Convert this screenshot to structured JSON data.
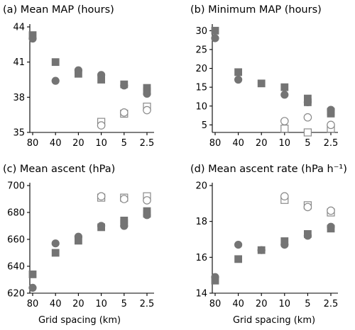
{
  "chart_data": [
    {
      "type": "scatter",
      "title": "(a) Mean MAP (hours)",
      "xlabel": "",
      "categories": [
        "80",
        "40",
        "20",
        "10",
        "5",
        "2.5"
      ],
      "ylim": [
        35,
        44
      ],
      "yticks": [
        35,
        38,
        41,
        44
      ],
      "series": [
        {
          "marker": "square",
          "fill": "filled",
          "values": [
            [
              0,
              43.3
            ],
            [
              1,
              41.0
            ],
            [
              2,
              40.0
            ],
            [
              3,
              39.5
            ],
            [
              4,
              39.1
            ],
            [
              5,
              38.8
            ],
            [
              5,
              38.5
            ]
          ]
        },
        {
          "marker": "circle",
          "fill": "filled",
          "values": [
            [
              0,
              43.0
            ],
            [
              1,
              39.4
            ],
            [
              2,
              40.3
            ],
            [
              3,
              39.9
            ],
            [
              4,
              39.0
            ],
            [
              5,
              38.3
            ]
          ]
        },
        {
          "marker": "square",
          "fill": "open",
          "values": [
            [
              3,
              35.9
            ],
            [
              4,
              36.6
            ],
            [
              5,
              37.2
            ]
          ]
        },
        {
          "marker": "circle",
          "fill": "open",
          "values": [
            [
              3,
              35.6
            ],
            [
              4,
              36.7
            ],
            [
              5,
              36.9
            ]
          ]
        }
      ]
    },
    {
      "type": "scatter",
      "title": "(b) Minimum MAP (hours)",
      "xlabel": "",
      "categories": [
        "80",
        "40",
        "20",
        "10",
        "5",
        "2.5"
      ],
      "ylim": [
        3,
        31
      ],
      "yticks": [
        5,
        10,
        15,
        20,
        25,
        30
      ],
      "series": [
        {
          "marker": "square",
          "fill": "filled",
          "values": [
            [
              0,
              30
            ],
            [
              1,
              19
            ],
            [
              2,
              16
            ],
            [
              3,
              15
            ],
            [
              4,
              12
            ],
            [
              4,
              11
            ],
            [
              5,
              8.5
            ],
            [
              5,
              8
            ]
          ]
        },
        {
          "marker": "circle",
          "fill": "filled",
          "values": [
            [
              0,
              28
            ],
            [
              1,
              17
            ],
            [
              3,
              13
            ],
            [
              4,
              11
            ],
            [
              5,
              9
            ]
          ]
        },
        {
          "marker": "square",
          "fill": "open",
          "values": [
            [
              3,
              4
            ],
            [
              4,
              3
            ],
            [
              5,
              4
            ]
          ]
        },
        {
          "marker": "circle",
          "fill": "open",
          "values": [
            [
              3,
              6
            ],
            [
              4,
              7
            ],
            [
              5,
              5
            ]
          ]
        }
      ]
    },
    {
      "type": "scatter",
      "title": "(c) Mean ascent (hPa)",
      "xlabel": "Grid spacing (km)",
      "categories": [
        "80",
        "40",
        "20",
        "10",
        "5",
        "2.5"
      ],
      "ylim": [
        620,
        700
      ],
      "yticks": [
        620,
        640,
        660,
        680,
        700
      ],
      "series": [
        {
          "marker": "square",
          "fill": "filled",
          "values": [
            [
              0,
              634
            ],
            [
              1,
              650
            ],
            [
              2,
              659
            ],
            [
              3,
              669
            ],
            [
              4,
              674
            ],
            [
              4,
              672
            ],
            [
              5,
              681
            ],
            [
              5,
              679
            ]
          ]
        },
        {
          "marker": "circle",
          "fill": "filled",
          "values": [
            [
              0,
              624
            ],
            [
              1,
              657
            ],
            [
              2,
              662
            ],
            [
              3,
              670
            ],
            [
              4,
              670
            ],
            [
              5,
              678
            ]
          ]
        },
        {
          "marker": "square",
          "fill": "open",
          "values": [
            [
              3,
              691
            ],
            [
              4,
              691
            ],
            [
              5,
              692
            ]
          ]
        },
        {
          "marker": "circle",
          "fill": "open",
          "values": [
            [
              3,
              692
            ],
            [
              4,
              690
            ],
            [
              5,
              689
            ]
          ]
        }
      ]
    },
    {
      "type": "scatter",
      "title": "(d) Mean ascent rate (hPa h⁻¹)",
      "xlabel": "Grid spacing (km)",
      "categories": [
        "80",
        "40",
        "20",
        "10",
        "5",
        "2.5"
      ],
      "ylim": [
        14,
        20
      ],
      "yticks": [
        14,
        16,
        18,
        20
      ],
      "series": [
        {
          "marker": "square",
          "fill": "filled",
          "values": [
            [
              0,
              14.7
            ],
            [
              1,
              15.9
            ],
            [
              2,
              16.4
            ],
            [
              3,
              16.9
            ],
            [
              4,
              17.3
            ],
            [
              5,
              17.6
            ]
          ]
        },
        {
          "marker": "circle",
          "fill": "filled",
          "values": [
            [
              0,
              14.9
            ],
            [
              1,
              16.7
            ],
            [
              2,
              16.4
            ],
            [
              3,
              16.7
            ],
            [
              4,
              17.2
            ],
            [
              5,
              17.7
            ]
          ]
        },
        {
          "marker": "square",
          "fill": "open",
          "values": [
            [
              3,
              19.2
            ],
            [
              4,
              18.9
            ],
            [
              5,
              18.5
            ]
          ]
        },
        {
          "marker": "circle",
          "fill": "open",
          "values": [
            [
              3,
              19.4
            ],
            [
              4,
              18.8
            ],
            [
              5,
              18.6
            ]
          ]
        }
      ]
    }
  ],
  "colors": {
    "filled": "#747474",
    "open_stroke": "#8a8a8a"
  }
}
